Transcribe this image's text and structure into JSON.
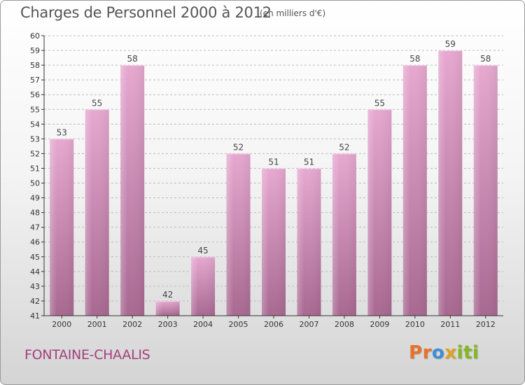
{
  "title": "Charges de Personnel 2000 à 2012",
  "subtitle": "(en milliers d'€)",
  "commune": "FONTAINE-CHAALIS",
  "logo": {
    "letters": [
      "P",
      "r",
      "o",
      "x",
      "i",
      "t",
      "i"
    ],
    "colors": [
      "#e8722a",
      "#e8722a",
      "#3d8fd3",
      "#e0a11b",
      "#84b71f",
      "#84b71f",
      "#84b71f"
    ]
  },
  "colors": {
    "bar_top": "#e6a8d0",
    "bar_bottom": "#a86891",
    "axis": "#333333",
    "grid": "#bbbbbb",
    "title": "#555555",
    "commune": "#a43f7d"
  },
  "chart_data": {
    "type": "bar",
    "title": "Charges de Personnel 2000 à 2012",
    "subtitle": "(en milliers d'€)",
    "categories": [
      "2000",
      "2001",
      "2002",
      "2003",
      "2004",
      "2005",
      "2006",
      "2007",
      "2008",
      "2009",
      "2010",
      "2011",
      "2012"
    ],
    "values": [
      53,
      55,
      58,
      42,
      45,
      52,
      51,
      51,
      52,
      55,
      58,
      59,
      58
    ],
    "ylim": [
      41,
      60
    ],
    "yticks": [
      41,
      42,
      43,
      44,
      45,
      46,
      47,
      48,
      49,
      50,
      51,
      52,
      53,
      54,
      55,
      56,
      57,
      58,
      59,
      60
    ],
    "grid": true,
    "data_labels": true
  }
}
